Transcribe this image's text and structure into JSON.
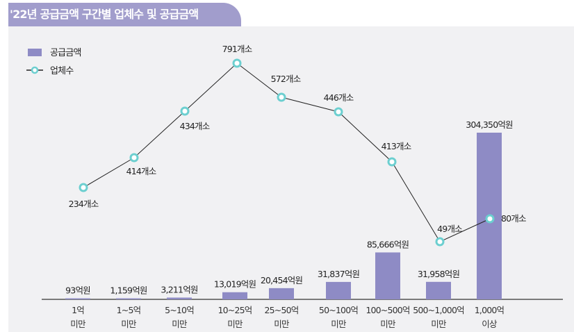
{
  "title": "'22년 공급금액 구간별 업체수 및 공급금액",
  "chart_data": {
    "type": "bar+line",
    "legend_position": "top-left",
    "grid": false,
    "categories": [
      [
        "1억",
        "미만"
      ],
      [
        "1~5억",
        "미만"
      ],
      [
        "5~10억",
        "미만"
      ],
      [
        "10~25억",
        "미만"
      ],
      [
        "25~50억",
        "미만"
      ],
      [
        "50~100억",
        "미만"
      ],
      [
        "100~500억",
        "미만"
      ],
      [
        "500~1,000억",
        "미만"
      ],
      [
        "1,000억",
        "이상"
      ]
    ],
    "series": [
      {
        "name": "공급금액",
        "type": "bar",
        "color": "#8e8bc5",
        "values": [
          93,
          1159,
          3211,
          13019,
          20454,
          31837,
          85666,
          31958,
          304350
        ],
        "labels": [
          "93억원",
          "1,159억원",
          "3,211억원",
          "13,019억원",
          "20,454억원",
          "31,837억원",
          "85,666억원",
          "31,958억원",
          "304,350억원"
        ]
      },
      {
        "name": "업체수",
        "type": "line",
        "color": "#6ccfd0",
        "values": [
          234,
          414,
          434,
          791,
          572,
          446,
          413,
          49,
          80
        ],
        "labels": [
          "234개소",
          "414개소",
          "434개소",
          "791개소",
          "572개소",
          "446개소",
          "413개소",
          "49개소",
          "80개소"
        ]
      }
    ]
  }
}
